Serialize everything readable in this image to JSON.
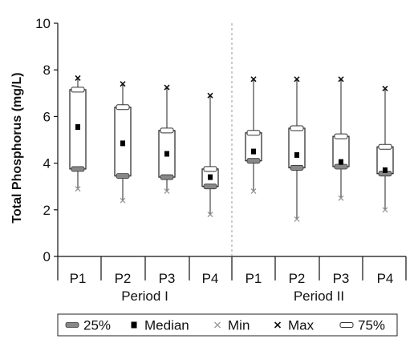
{
  "chart_data": {
    "type": "box",
    "ylabel": "Total Phosphorus (mg/L)",
    "ylim": [
      0,
      10
    ],
    "yticks": [
      0,
      2,
      4,
      6,
      8,
      10
    ],
    "periods": [
      {
        "label": "Period I",
        "categories": [
          "P1",
          "P2",
          "P3",
          "P4"
        ],
        "boxes": [
          {
            "min": 2.9,
            "q1": 3.75,
            "median": 5.55,
            "q3": 7.15,
            "max": 7.65
          },
          {
            "min": 2.4,
            "q1": 3.45,
            "median": 4.85,
            "q3": 6.4,
            "max": 7.4
          },
          {
            "min": 2.8,
            "q1": 3.4,
            "median": 4.4,
            "q3": 5.4,
            "max": 7.25
          },
          {
            "min": 1.8,
            "q1": 3.0,
            "median": 3.4,
            "q3": 3.75,
            "max": 6.9
          }
        ]
      },
      {
        "label": "Period II",
        "categories": [
          "P1",
          "P2",
          "P3",
          "P4"
        ],
        "boxes": [
          {
            "min": 2.8,
            "q1": 4.1,
            "median": 4.5,
            "q3": 5.3,
            "max": 7.6
          },
          {
            "min": 1.6,
            "q1": 3.8,
            "median": 4.35,
            "q3": 5.5,
            "max": 7.6
          },
          {
            "min": 2.5,
            "q1": 3.85,
            "median": 4.05,
            "q3": 5.15,
            "max": 7.6
          },
          {
            "min": 2.0,
            "q1": 3.55,
            "median": 3.7,
            "q3": 4.7,
            "max": 7.2
          }
        ]
      }
    ],
    "legend": {
      "placement": "bottom",
      "items": [
        {
          "key": "q1",
          "label": "25%"
        },
        {
          "key": "median",
          "label": "Median"
        },
        {
          "key": "min",
          "label": "Min"
        },
        {
          "key": "max",
          "label": "Max"
        },
        {
          "key": "q3",
          "label": "75%"
        }
      ]
    },
    "colors": {
      "box_edge": "#222222",
      "q1_marker": "#888888",
      "median_marker": "#000000",
      "min_marker": "#999999",
      "max_marker": "#111111",
      "divider": "#999999"
    }
  }
}
